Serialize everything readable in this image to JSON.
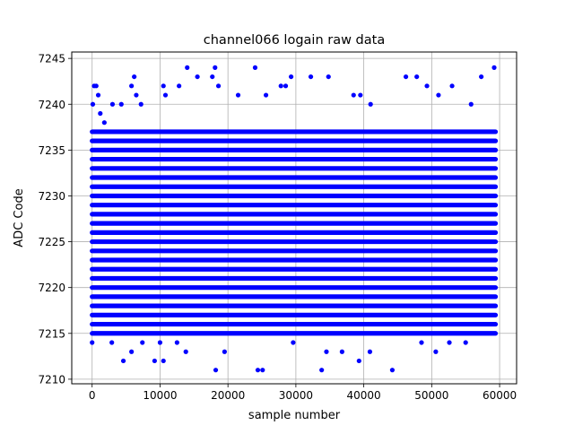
{
  "chart_data": {
    "type": "scatter",
    "title": "channel066 logain raw data",
    "xlabel": "sample number",
    "ylabel": "ADC Code",
    "xlim": [
      -3000,
      62500
    ],
    "ylim": [
      7209.5,
      7245.7
    ],
    "xticks": [
      0,
      10000,
      20000,
      30000,
      40000,
      50000,
      60000
    ],
    "xtick_labels": [
      "0",
      "10000",
      "20000",
      "30000",
      "40000",
      "50000",
      "60000"
    ],
    "yticks": [
      7210,
      7215,
      7220,
      7225,
      7230,
      7235,
      7240,
      7245
    ],
    "ytick_labels": [
      "7210",
      "7215",
      "7220",
      "7225",
      "7230",
      "7235",
      "7240",
      "7245"
    ],
    "grid": true,
    "marker_color": "#0000ff",
    "x_range": [
      0,
      59400
    ],
    "dense_band": [
      7215,
      7237
    ],
    "outliers": [
      {
        "x": 100,
        "y": 7240
      },
      {
        "x": 300,
        "y": 7242
      },
      {
        "x": 600,
        "y": 7242
      },
      {
        "x": 900,
        "y": 7241
      },
      {
        "x": 1200,
        "y": 7239
      },
      {
        "x": 1800,
        "y": 7238
      },
      {
        "x": 3000,
        "y": 7240
      },
      {
        "x": 4300,
        "y": 7240
      },
      {
        "x": 5800,
        "y": 7242
      },
      {
        "x": 6200,
        "y": 7243
      },
      {
        "x": 6500,
        "y": 7241
      },
      {
        "x": 7200,
        "y": 7240
      },
      {
        "x": 10500,
        "y": 7242
      },
      {
        "x": 10800,
        "y": 7241
      },
      {
        "x": 12800,
        "y": 7242
      },
      {
        "x": 14000,
        "y": 7244
      },
      {
        "x": 15500,
        "y": 7243
      },
      {
        "x": 17700,
        "y": 7243
      },
      {
        "x": 18100,
        "y": 7244
      },
      {
        "x": 18600,
        "y": 7242
      },
      {
        "x": 21500,
        "y": 7241
      },
      {
        "x": 24000,
        "y": 7244
      },
      {
        "x": 25600,
        "y": 7241
      },
      {
        "x": 27800,
        "y": 7242
      },
      {
        "x": 28500,
        "y": 7242
      },
      {
        "x": 29300,
        "y": 7243
      },
      {
        "x": 32200,
        "y": 7243
      },
      {
        "x": 34800,
        "y": 7243
      },
      {
        "x": 38500,
        "y": 7241
      },
      {
        "x": 39500,
        "y": 7241
      },
      {
        "x": 41000,
        "y": 7240
      },
      {
        "x": 46200,
        "y": 7243
      },
      {
        "x": 47800,
        "y": 7243
      },
      {
        "x": 49300,
        "y": 7242
      },
      {
        "x": 51000,
        "y": 7241
      },
      {
        "x": 53000,
        "y": 7242
      },
      {
        "x": 55800,
        "y": 7240
      },
      {
        "x": 57300,
        "y": 7243
      },
      {
        "x": 59200,
        "y": 7244
      },
      {
        "x": 0,
        "y": 7214
      },
      {
        "x": 2900,
        "y": 7214
      },
      {
        "x": 4600,
        "y": 7212
      },
      {
        "x": 5800,
        "y": 7213
      },
      {
        "x": 7400,
        "y": 7214
      },
      {
        "x": 9200,
        "y": 7212
      },
      {
        "x": 10000,
        "y": 7214
      },
      {
        "x": 10500,
        "y": 7212
      },
      {
        "x": 12500,
        "y": 7214
      },
      {
        "x": 13800,
        "y": 7213
      },
      {
        "x": 18200,
        "y": 7211
      },
      {
        "x": 19500,
        "y": 7213
      },
      {
        "x": 24400,
        "y": 7211
      },
      {
        "x": 25100,
        "y": 7211
      },
      {
        "x": 29600,
        "y": 7214
      },
      {
        "x": 33800,
        "y": 7211
      },
      {
        "x": 34500,
        "y": 7213
      },
      {
        "x": 36800,
        "y": 7213
      },
      {
        "x": 39300,
        "y": 7212
      },
      {
        "x": 40900,
        "y": 7213
      },
      {
        "x": 44200,
        "y": 7211
      },
      {
        "x": 48500,
        "y": 7214
      },
      {
        "x": 50600,
        "y": 7213
      },
      {
        "x": 52600,
        "y": 7214
      },
      {
        "x": 55000,
        "y": 7214
      }
    ]
  }
}
